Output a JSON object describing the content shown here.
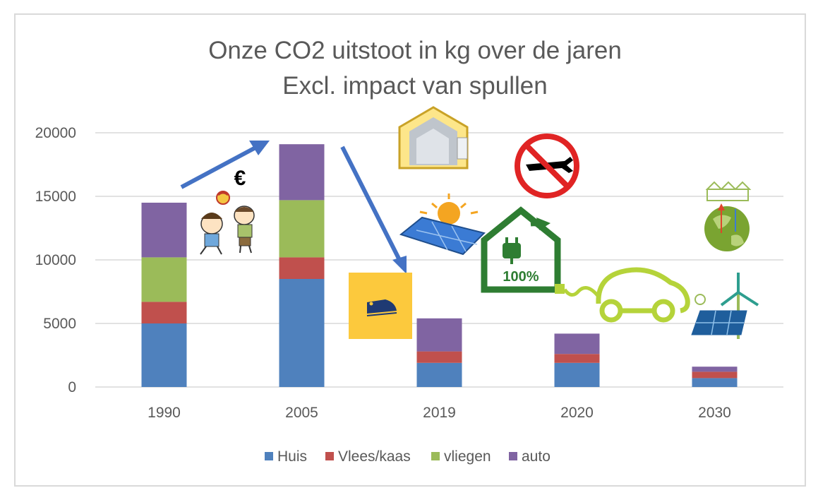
{
  "chart_data": {
    "type": "bar",
    "stacked": true,
    "title": "Onze CO2 uitstoot in kg over de jaren",
    "subtitle": "Excl. impact van spullen",
    "categories": [
      "1990",
      "2005",
      "2019",
      "2020",
      "2030"
    ],
    "series": [
      {
        "name": "Huis",
        "color": "#4f81bd",
        "values": [
          5000,
          8500,
          1900,
          1900,
          700
        ]
      },
      {
        "name": "Vlees/kaas",
        "color": "#c0504d",
        "values": [
          1700,
          1700,
          900,
          700,
          500
        ]
      },
      {
        "name": "vliegen",
        "color": "#9bbb59",
        "values": [
          3500,
          4500,
          0,
          0,
          0
        ]
      },
      {
        "name": "auto",
        "color": "#8064a2",
        "values": [
          4300,
          4400,
          2600,
          1600,
          400
        ]
      }
    ],
    "yticks": [
      "0",
      "5000",
      "10000",
      "15000",
      "20000"
    ],
    "ylim": [
      0,
      20000
    ],
    "grid": true,
    "legend": "bottom",
    "currency_symbol": "€",
    "badge_text": "100%",
    "arrow_color": "#4472c4",
    "annotation_icons": [
      "children-playing-icon",
      "insulated-house-icon",
      "no-flying-icon",
      "solar-panel-icon",
      "train-icon",
      "green-electricity-house-icon",
      "electric-car-icon",
      "sustainable-earth-icon",
      "solar-and-wind-icon"
    ]
  }
}
